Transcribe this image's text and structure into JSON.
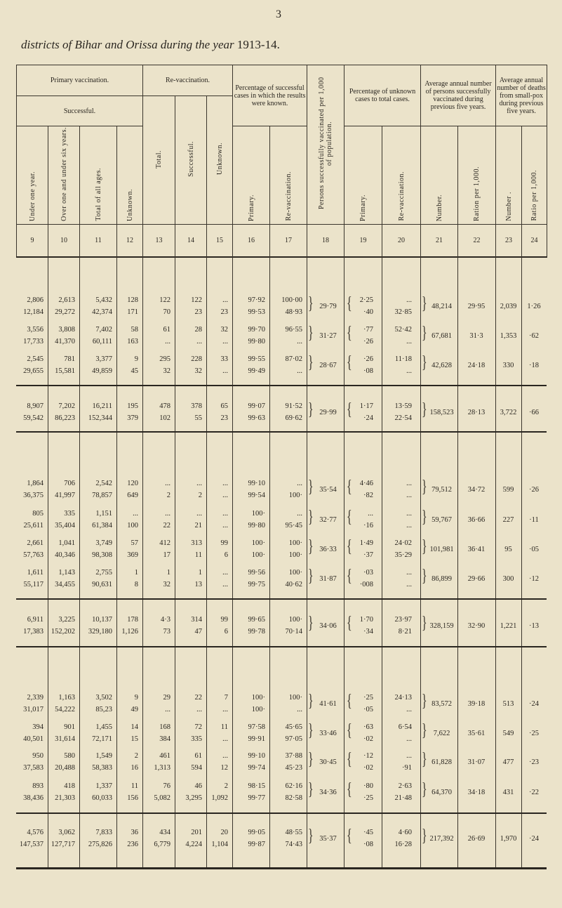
{
  "page_number": "3",
  "title": {
    "italic": "districts of Bihar and Orissa during the year",
    "year": "1913-14."
  },
  "header": {
    "primary_vaccination": "Primary vaccination.",
    "successful": "Successful.",
    "revaccination": "Re-vaccination.",
    "pct_successful": "Percentage of successful cases in which the results were known.",
    "persons_per_1000": "Persons successfully vaccinated per 1,000 of population.",
    "pct_unknown": "Percentage of unknown cases to total cases.",
    "avg_vaccinated": "Average annual number of persons successfully vaccinated during previous five years.",
    "avg_deaths": "Average annual number of deaths from small-pox during previous five years.",
    "columns": [
      "Under one year.",
      "Over one and under six years.",
      "Total of all ages.",
      "Unknown.",
      "Total.",
      "Successful.",
      "Unknown.",
      "Primary.",
      "Re-vaccination.",
      "",
      "Primary.",
      "Re-vaccination.",
      "Number.",
      "Ration per 1,000.",
      "Number .",
      "Ratio per 1,000."
    ],
    "numbers": [
      "9",
      "10",
      "11",
      "12",
      "13",
      "14",
      "15",
      "16",
      "17",
      "18",
      "19",
      "20",
      "21",
      "22",
      "23",
      "24"
    ]
  },
  "rows": [
    {
      "top": [
        "2,806",
        "2,613",
        "5,432",
        "128",
        "122",
        "122",
        "...",
        "97·92",
        "100·00"
      ],
      "bottom": [
        "12,184",
        "29,272",
        "42,374",
        "171",
        "70",
        "23",
        "23",
        "99·53",
        "48·93"
      ],
      "c18": "29·79",
      "c19": [
        "2·25",
        "·40"
      ],
      "c20": [
        "...",
        "32·85"
      ],
      "c21": "48,214",
      "c22": "29·95",
      "c23": "2,039",
      "c24": "1·26"
    },
    {
      "top": [
        "3,556",
        "3,808",
        "7,402",
        "58",
        "61",
        "28",
        "32",
        "99·70",
        "96·55"
      ],
      "bottom": [
        "17,733",
        "41,370",
        "60,111",
        "163",
        "...",
        "...",
        "...",
        "99·80",
        "..."
      ],
      "c18": "31·27",
      "c19": [
        "·77",
        "·26"
      ],
      "c20": [
        "52·42",
        "..."
      ],
      "c21": "67,681",
      "c22": "31·3",
      "c23": "1,353",
      "c24": "·62"
    },
    {
      "top": [
        "2,545",
        "781",
        "3,377",
        "9",
        "295",
        "228",
        "33",
        "99·55",
        "87·02"
      ],
      "bottom": [
        "29,655",
        "15,581",
        "49,859",
        "45",
        "32",
        "32",
        "...",
        "99·49",
        "..."
      ],
      "c18": "28·67",
      "c19": [
        "·26",
        "·08"
      ],
      "c20": [
        "11·18",
        "..."
      ],
      "c21": "42,628",
      "c22": "24·18",
      "c23": "330",
      "c24": "·18"
    },
    {
      "top": [
        "8,907",
        "7,202",
        "16,211",
        "195",
        "478",
        "378",
        "65",
        "99·07",
        "91·52"
      ],
      "bottom": [
        "59,542",
        "86,223",
        "152,344",
        "379",
        "102",
        "55",
        "23",
        "99·63",
        "69·62"
      ],
      "c18": "29·99",
      "c19": [
        "1·17",
        "·24"
      ],
      "c20": [
        "13·59",
        "22·54"
      ],
      "c21": "158,523",
      "c22": "28·13",
      "c23": "3,722",
      "c24": "·66"
    },
    {
      "top": [
        "1,864",
        "706",
        "2,542",
        "120",
        "...",
        "...",
        "...",
        "99·10",
        "..."
      ],
      "bottom": [
        "36,375",
        "41,997",
        "78,857",
        "649",
        "2",
        "2",
        "...",
        "99·54",
        "100·"
      ],
      "c18": "35·54",
      "c19": [
        "4·46",
        "·82"
      ],
      "c20": [
        "...",
        "..."
      ],
      "c21": "79,512",
      "c22": "34·72",
      "c23": "599",
      "c24": "·26"
    },
    {
      "top": [
        "805",
        "335",
        "1,151",
        "...",
        "...",
        "...",
        "...",
        "100·",
        "..."
      ],
      "bottom": [
        "25,611",
        "35,404",
        "61,384",
        "100",
        "22",
        "21",
        "...",
        "99·80",
        "95·45"
      ],
      "c18": "32·77",
      "c19": [
        "...",
        "·16"
      ],
      "c20": [
        "...",
        "..."
      ],
      "c21": "59,767",
      "c22": "36·66",
      "c23": "227",
      "c24": "·11"
    },
    {
      "top": [
        "2,661",
        "1,041",
        "3,749",
        "57",
        "412",
        "313",
        "99",
        "100·",
        "100·"
      ],
      "bottom": [
        "57,763",
        "40,346",
        "98,308",
        "369",
        "17",
        "11",
        "6",
        "100·",
        "100·"
      ],
      "c18": "36·33",
      "c19": [
        "1·49",
        "·37"
      ],
      "c20": [
        "24·02",
        "35·29"
      ],
      "c21": "101,981",
      "c22": "36·41",
      "c23": "95",
      "c24": "·05"
    },
    {
      "top": [
        "1,611",
        "1,143",
        "2,755",
        "1",
        "1",
        "1",
        "...",
        "99·56",
        "100·"
      ],
      "bottom": [
        "55,117",
        "34,455",
        "90,631",
        "8",
        "32",
        "13",
        "...",
        "99·75",
        "40·62"
      ],
      "c18": "31·87",
      "c19": [
        "·03",
        "·008"
      ],
      "c20": [
        "...",
        "..."
      ],
      "c21": "86,899",
      "c22": "29·66",
      "c23": "300",
      "c24": "·12"
    },
    {
      "top": [
        "6,911",
        "3,225",
        "10,137",
        "178",
        "4·3",
        "314",
        "99",
        "99·65",
        "100·"
      ],
      "bottom": [
        "17,383",
        "152,202",
        "329,180",
        "1,126",
        "73",
        "47",
        "6",
        "99·78",
        "70·14"
      ],
      "c18": "34·06",
      "c19": [
        "1·70",
        "·34"
      ],
      "c20": [
        "23·97",
        "8·21"
      ],
      "c21": "328,159",
      "c22": "32·90",
      "c23": "1,221",
      "c24": "·13"
    },
    {
      "top": [
        "2,339",
        "1,163",
        "3,502",
        "9",
        "29",
        "22",
        "7",
        "100·",
        "100·"
      ],
      "bottom": [
        "31,017",
        "54,222",
        "85,23",
        "49",
        "...",
        "...",
        "...",
        "100·",
        "..."
      ],
      "c18": "41·61",
      "c19": [
        "·25",
        "·05"
      ],
      "c20": [
        "24·13",
        "..."
      ],
      "c21": "83,572",
      "c22": "39·18",
      "c23": "513",
      "c24": "·24"
    },
    {
      "top": [
        "394",
        "901",
        "1,455",
        "14",
        "168",
        "72",
        "11",
        "97·58",
        "45·65"
      ],
      "bottom": [
        "40,501",
        "31,614",
        "72,171",
        "15",
        "384",
        "335",
        "...",
        "99·91",
        "97·05"
      ],
      "c18": "33·46",
      "c19": [
        "·63",
        "·02"
      ],
      "c20": [
        "6·54",
        "..."
      ],
      "c21": "7,622",
      "c22": "35·61",
      "c23": "549",
      "c24": "·25"
    },
    {
      "top": [
        "950",
        "580",
        "1,549",
        "2",
        "461",
        "61",
        "...",
        "99·10",
        "37·88"
      ],
      "bottom": [
        "37,583",
        "20,488",
        "58,383",
        "16",
        "1,313",
        "594",
        "12",
        "99·74",
        "45·23"
      ],
      "c18": "30·45",
      "c19": [
        "·12",
        "·02"
      ],
      "c20": [
        "...",
        "·91"
      ],
      "c21": "61,828",
      "c22": "31·07",
      "c23": "477",
      "c24": "·23"
    },
    {
      "top": [
        "893",
        "418",
        "1,337",
        "11",
        "76",
        "46",
        "2",
        "98·15",
        "62·16"
      ],
      "bottom": [
        "38,436",
        "21,303",
        "60,033",
        "156",
        "5,082",
        "3,295",
        "1,092",
        "99·77",
        "82·58"
      ],
      "c18": "34·36",
      "c19": [
        "·80",
        "·25"
      ],
      "c20": [
        "2·63",
        "21·48"
      ],
      "c21": "64,370",
      "c22": "34·18",
      "c23": "431",
      "c24": "·22"
    },
    {
      "top": [
        "4,576",
        "3,062",
        "7,833",
        "36",
        "434",
        "201",
        "20",
        "99·05",
        "48·55"
      ],
      "bottom": [
        "147,537",
        "127,717",
        "275,826",
        "236",
        "6,779",
        "4,224",
        "1,104",
        "99·87",
        "74·43"
      ],
      "c18": "35·37",
      "c19": [
        "·45",
        "·08"
      ],
      "c20": [
        "4·60",
        "16·28"
      ],
      "c21": "217,392",
      "c22": "26·69",
      "c23": "1,970",
      "c24": "·24"
    }
  ]
}
